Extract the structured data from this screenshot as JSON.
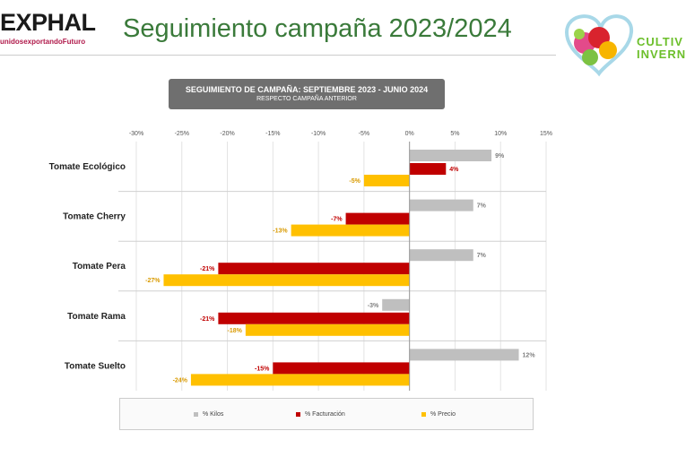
{
  "header": {
    "logo_text": "EXPHAL",
    "logo_tagline": "unidosexportandoFuturo",
    "title": "Seguimiento campaña 2023/2024",
    "right_logo_line1": "CULTIV",
    "right_logo_line2": "INVERNA"
  },
  "colors": {
    "kilos": "#bfbfbf",
    "facturacion": "#c00000",
    "precio": "#ffc000",
    "label_kilos": "#808080",
    "label_facturacion": "#c00000",
    "label_precio": "#d99a00"
  },
  "chart_data": {
    "type": "bar",
    "orientation": "horizontal",
    "title": "SEGUIMIENTO DE CAMPAÑA: SEPTIEMBRE  2023 - JUNIO 2024",
    "subtitle": "RESPECTO CAMPAÑA ANTERIOR",
    "categories": [
      "Tomate Ecológico",
      "Tomate Cherry",
      "Tomate Pera",
      "Tomate Rama",
      "Tomate Suelto"
    ],
    "xlim": [
      -30,
      15
    ],
    "x_ticks": [
      "-30%",
      "-25%",
      "-20%",
      "-15%",
      "-10%",
      "-5%",
      "0%",
      "5%",
      "10%",
      "15%"
    ],
    "tick_values": [
      -30,
      -25,
      -20,
      -15,
      -10,
      -5,
      0,
      5,
      10,
      15
    ],
    "series": [
      {
        "name": "% Kilos",
        "values": [
          9,
          7,
          7,
          -3,
          12
        ],
        "labels": [
          "9%",
          "7%",
          "7%",
          "-3%",
          "12%"
        ]
      },
      {
        "name": "% Facturación",
        "values": [
          4,
          -7,
          -21,
          -21,
          -15
        ],
        "labels": [
          "4%",
          "-7%",
          "-21%",
          "-21%",
          "-15%"
        ]
      },
      {
        "name": "% Precio",
        "values": [
          -5,
          -13,
          -27,
          -18,
          -24
        ],
        "labels": [
          "-5%",
          "-13%",
          "-27%",
          "-18%",
          "-24%"
        ]
      }
    ],
    "legend_position": "bottom"
  }
}
